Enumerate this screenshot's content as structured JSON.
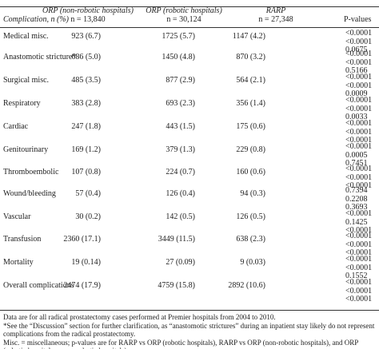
{
  "table": {
    "header": {
      "label": "Complication, n (%)",
      "columns": [
        {
          "name": "ORP (non-robotic hospitals)",
          "n": "n = 13,840"
        },
        {
          "name": "ORP (robotic hospitals)",
          "n": "n = 30,124"
        },
        {
          "name": "RARP",
          "n": "n = 27,348"
        }
      ],
      "p": "P-values"
    },
    "rows": [
      [
        "Medical misc.",
        "923 (6.7)",
        "1725 (5.7)",
        "1147 (4.2)",
        [
          "<0.0001",
          "<0.0001",
          "0.0675"
        ]
      ],
      [
        "Anastomotic stricture*",
        "686 (5.0)",
        "1450 (4.8)",
        "870 (3.2)",
        [
          "<0.0001",
          "<0.0001",
          "0.5166"
        ]
      ],
      [
        "Surgical misc.",
        "485 (3.5)",
        "877 (2.9)",
        "564 (2.1)",
        [
          "<0.0001",
          "<0.0001",
          "0.0009"
        ]
      ],
      [
        "Respiratory",
        "383 (2.8)",
        "693 (2.3)",
        "356 (1.4)",
        [
          "<0.0001",
          "<0.0001",
          "0.0033"
        ]
      ],
      [
        "Cardiac",
        "247 (1.8)",
        "443 (1.5)",
        "175 (0.6)",
        [
          "<0.0001",
          "<0.0001",
          "<0.0001"
        ]
      ],
      [
        "Genitourinary",
        "169 (1.2)",
        "379 (1.3)",
        "229 (0.8)",
        [
          "<0.0001",
          "0.0005",
          "0.7451"
        ]
      ],
      [
        "Thromboembolic",
        "107 (0.8)",
        "224 (0.7)",
        "160 (0.6)",
        [
          "<0.0001",
          "<0.0001",
          "<0.0001"
        ]
      ],
      [
        "Wound/bleeding",
        "57 (0.4)",
        "126 (0.4)",
        "94 (0.3)",
        [
          "0.7394",
          "0.2208",
          "0.3693"
        ]
      ],
      [
        "Vascular",
        "30 (0.2)",
        "142 (0.5)",
        "126 (0.5)",
        [
          "<0.0001",
          "0.1425",
          "<0.0001"
        ]
      ],
      [
        "Transfusion",
        "2360 (17.1)",
        "3449 (11.5)",
        "638 (2.3)",
        [
          "<0.0001",
          "<0.0001",
          "<0.0001"
        ]
      ],
      [
        "Mortality",
        "19 (0.14)",
        "27 (0.09)",
        "9 (0.03)",
        [
          "<0.0001",
          "<0.0001",
          "0.1552"
        ]
      ],
      [
        "Overall complications",
        "2474 (17.9)",
        "4759 (15.8)",
        "2892 (10.6)",
        [
          "<0.0001",
          "<0.0001",
          "<0.0001"
        ]
      ]
    ]
  },
  "footnotes": [
    "Data are for all radical prostatectomy cases performed at Premier hospitals from 2004 to 2010.",
    "*See the “Discussion” section for further clarification, as “anastomotic strictures” during an inpatient stay likely do not represent complications from the radical prostatectomy.",
    "Misc. = miscellaneous; p-values are for RARP vs ORP (robotic hospitals), RARP vs ORP (non-robotic hospitals), and ORP (robotic hospitals vs non-robotic hospitals)."
  ]
}
